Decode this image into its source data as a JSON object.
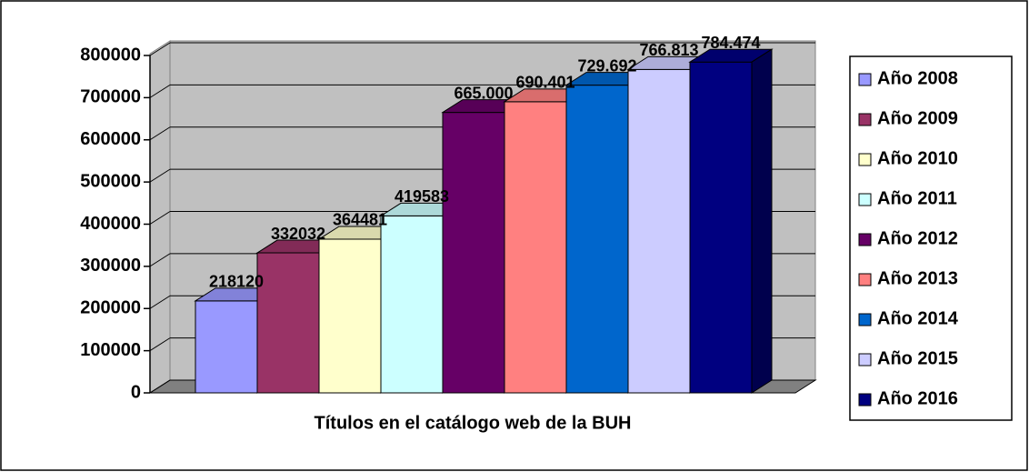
{
  "chart_data": {
    "type": "bar",
    "categories": [
      "Títulos en el catálogo web de la BUH"
    ],
    "ylim": [
      0,
      800000
    ],
    "yticks": [
      0,
      100000,
      200000,
      300000,
      400000,
      500000,
      600000,
      700000,
      800000
    ],
    "grid": true,
    "legend": "right",
    "series": [
      {
        "name": "Año 2008",
        "color": "#9999ff",
        "values": [
          218120
        ],
        "value_labels": [
          "218120"
        ]
      },
      {
        "name": "Año 2009",
        "color": "#993366",
        "values": [
          332032
        ],
        "value_labels": [
          "332032"
        ]
      },
      {
        "name": "Año 2010",
        "color": "#ffffcc",
        "values": [
          364481
        ],
        "value_labels": [
          "364481"
        ]
      },
      {
        "name": "Año 2011",
        "color": "#ccffff",
        "values": [
          419583
        ],
        "value_labels": [
          "419583"
        ]
      },
      {
        "name": "Año 2012",
        "color": "#660066",
        "values": [
          665000
        ],
        "value_labels": [
          "665.000"
        ]
      },
      {
        "name": "Año 2013",
        "color": "#ff8080",
        "values": [
          690401
        ],
        "value_labels": [
          "690.401"
        ]
      },
      {
        "name": "Año 2014",
        "color": "#0066cc",
        "values": [
          729692
        ],
        "value_labels": [
          "729.692"
        ]
      },
      {
        "name": "Año 2015",
        "color": "#ccccff",
        "values": [
          766813
        ],
        "value_labels": [
          "766.813"
        ]
      },
      {
        "name": "Año 2016",
        "color": "#000080",
        "values": [
          784474
        ],
        "value_labels": [
          "784.474"
        ]
      }
    ]
  }
}
